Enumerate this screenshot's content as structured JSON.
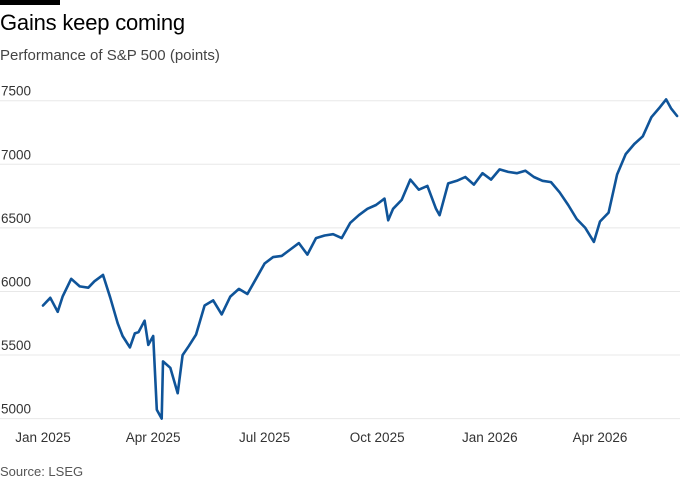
{
  "title": "Gains keep coming",
  "subtitle": "Performance of S&P 500 (points)",
  "source": "Source: LSEG",
  "colors": {
    "series": "#0f5499",
    "accent_bar": "#000000"
  },
  "chart_data": {
    "type": "line",
    "title": "Gains keep coming",
    "subtitle": "Performance of S&P 500 (points)",
    "xlabel": "",
    "ylabel": "",
    "ylim": [
      4950,
      7600
    ],
    "yticks": [
      5000,
      5500,
      6000,
      6500,
      7000,
      7500
    ],
    "xticks": [
      {
        "label": "Jan 2025",
        "value": "2025-01-01"
      },
      {
        "label": "Apr 2025",
        "value": "2025-04-01"
      },
      {
        "label": "Jul 2025",
        "value": "2025-07-01"
      },
      {
        "label": "Oct 2025",
        "value": "2025-10-01"
      },
      {
        "label": "Jan 2026",
        "value": "2026-01-01"
      },
      {
        "label": "Apr 2026",
        "value": "2026-04-01"
      }
    ],
    "grid": true,
    "series": [
      {
        "color": "#0f5499",
        "x": [
          "2025-01-01",
          "2025-01-07",
          "2025-01-13",
          "2025-01-17",
          "2025-01-24",
          "2025-01-31",
          "2025-02-07",
          "2025-02-12",
          "2025-02-19",
          "2025-02-25",
          "2025-03-03",
          "2025-03-07",
          "2025-03-13",
          "2025-03-17",
          "2025-03-20",
          "2025-03-25",
          "2025-03-28",
          "2025-04-01",
          "2025-04-04",
          "2025-04-08",
          "2025-04-09",
          "2025-04-15",
          "2025-04-21",
          "2025-04-25",
          "2025-04-30",
          "2025-05-06",
          "2025-05-13",
          "2025-05-20",
          "2025-05-27",
          "2025-06-03",
          "2025-06-10",
          "2025-06-17",
          "2025-06-24",
          "2025-07-01",
          "2025-07-08",
          "2025-07-15",
          "2025-07-22",
          "2025-07-29",
          "2025-08-05",
          "2025-08-12",
          "2025-08-19",
          "2025-08-26",
          "2025-09-02",
          "2025-09-09",
          "2025-09-16",
          "2025-09-23",
          "2025-09-30",
          "2025-10-07",
          "2025-10-10",
          "2025-10-14",
          "2025-10-21",
          "2025-10-28",
          "2025-11-04",
          "2025-11-11",
          "2025-11-18",
          "2025-11-21",
          "2025-11-28",
          "2025-12-05",
          "2025-12-12",
          "2025-12-19",
          "2025-12-26",
          "2026-01-02",
          "2026-01-09",
          "2026-01-16",
          "2026-01-23",
          "2026-01-30",
          "2026-02-06",
          "2026-02-13",
          "2026-02-20",
          "2026-02-27",
          "2026-03-06",
          "2026-03-13",
          "2026-03-20",
          "2026-03-27",
          "2026-04-01",
          "2026-04-08",
          "2026-04-15",
          "2026-04-22",
          "2026-04-29",
          "2026-05-06",
          "2026-05-13",
          "2026-05-20",
          "2026-05-25",
          "2026-05-29",
          "2026-06-03"
        ],
        "y": [
          5890,
          5950,
          5840,
          5960,
          6100,
          6040,
          6030,
          6080,
          6130,
          5950,
          5750,
          5650,
          5560,
          5670,
          5680,
          5770,
          5580,
          5650,
          5070,
          5000,
          5450,
          5400,
          5200,
          5500,
          5570,
          5660,
          5890,
          5930,
          5820,
          5960,
          6020,
          5980,
          6100,
          6220,
          6270,
          6280,
          6330,
          6380,
          6290,
          6420,
          6440,
          6450,
          6420,
          6540,
          6600,
          6650,
          6680,
          6730,
          6560,
          6650,
          6720,
          6880,
          6800,
          6830,
          6650,
          6600,
          6850,
          6870,
          6900,
          6840,
          6930,
          6880,
          6960,
          6940,
          6930,
          6950,
          6900,
          6870,
          6860,
          6780,
          6680,
          6570,
          6500,
          6390,
          6550,
          6620,
          6920,
          7080,
          7160,
          7220,
          7370,
          7450,
          7510,
          7440,
          7380
        ]
      }
    ]
  }
}
